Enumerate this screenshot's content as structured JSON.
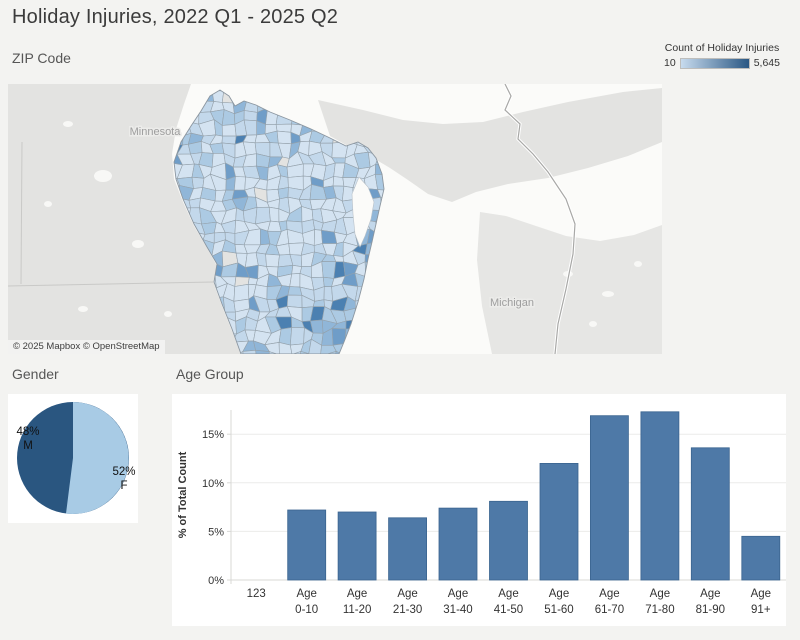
{
  "header": {
    "title": "Holiday Injuries, 2022 Q1 - 2025 Q2"
  },
  "map": {
    "title": "ZIP Code",
    "legend": {
      "title": "Count of Holiday Injuries",
      "min_label": "10",
      "max_label": "5,645",
      "min_color": "#c7dbee",
      "max_color": "#2a5783"
    },
    "state_labels": {
      "minnesota": "Minnesota",
      "michigan": "Michigan"
    },
    "attribution": "© 2025 Mapbox © OpenStreetMap"
  },
  "gender": {
    "title": "Gender"
  },
  "age": {
    "title": "Age Group"
  },
  "chart_data": [
    {
      "type": "choropleth",
      "title": "ZIP Code",
      "region": "Wisconsin ZIP codes",
      "measure": "Count of Holiday Injuries",
      "min": 10,
      "max": 5645,
      "min_color": "#c7dbee",
      "max_color": "#2a5783",
      "legend_position": "top-right"
    },
    {
      "type": "pie",
      "title": "Gender",
      "slices": [
        {
          "label": "M",
          "pct_label": "48%",
          "value": 48,
          "color": "#2a5680"
        },
        {
          "label": "F",
          "pct_label": "52%",
          "value": 52,
          "color": "#a8cbe5"
        }
      ]
    },
    {
      "type": "bar",
      "title": "Age Group",
      "xlabel": "",
      "ylabel": "% of Total Count",
      "ylim": [
        0,
        18.5
      ],
      "yticks": [
        0,
        5,
        10,
        15
      ],
      "ytick_labels": [
        "0%",
        "5%",
        "10%",
        "15%"
      ],
      "categories": [
        "123",
        "Age 0-10",
        "Age 11-20",
        "Age 21-30",
        "Age 31-40",
        "Age 41-50",
        "Age 51-60",
        "Age 61-70",
        "Age 71-80",
        "Age 81-90",
        "Age 91+"
      ],
      "values": [
        0,
        7.2,
        7.0,
        6.4,
        7.4,
        8.1,
        12.0,
        16.9,
        17.3,
        13.6,
        4.5
      ],
      "bar_color": "#4e79a7",
      "bar_border": "#3a648f",
      "grid": true
    }
  ]
}
